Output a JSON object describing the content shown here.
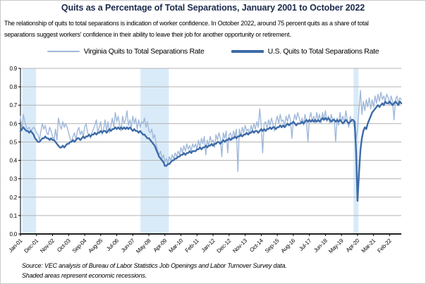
{
  "figure": {
    "title": "Quits as a Percentage of Total Separations, January 2001 to October 2022",
    "subtitle_line1": "The relationship of quits to total separations is indication of worker confidence. In October 2022, around 75 percent quits as a share of total",
    "subtitle_line2": "separations suggest workers' confidence in their ability to leave their job for another opportunity or retirement.",
    "source_line1": "Source: VEC analysis of Bureau of Labor Statistics Job Openings and Labor Turnover Survey data.",
    "source_line2": "Shaded areas represent economic recessions."
  },
  "colors": {
    "title": "#1b2a4c",
    "virginia_line": "#9fb8da",
    "us_line": "#3d6ba8",
    "recession_band": "#d9ebf8",
    "gridline": "#b3b3b3",
    "axis": "#000000"
  },
  "chart_data": {
    "type": "line",
    "title": "Quits as a Percentage of Total Separations, January 2001 to October 2022",
    "x_start": "Jan-2001",
    "x_end": "Oct-2022",
    "x_frequency": "monthly",
    "ylim": [
      0.0,
      0.9
    ],
    "y_tick_step": 0.1,
    "grid": true,
    "legend_position": "top",
    "x_tick_labels": [
      "Jan-01",
      "Dec-01",
      "Nov-02",
      "Oct-03",
      "Sep-04",
      "Aug-05",
      "Jul-06",
      "Jun-07",
      "May-08",
      "Apr-09",
      "Mar-10",
      "Feb-11",
      "Jan-12",
      "Dec-12",
      "Nov-13",
      "Oct-14",
      "Sep-15",
      "Aug-16",
      "Jul-17",
      "Jun-18",
      "May-19",
      "Apr-20",
      "Mar-21",
      "Feb-22"
    ],
    "x_tick_indices": [
      0,
      11,
      22,
      33,
      44,
      55,
      66,
      77,
      88,
      99,
      110,
      121,
      132,
      143,
      154,
      165,
      176,
      187,
      198,
      209,
      220,
      231,
      242,
      253
    ],
    "recession_bands": [
      {
        "start": "Mar-2001",
        "end": "Nov-2001",
        "from_index": 2,
        "to_index": 10
      },
      {
        "start": "Dec-2007",
        "end": "Jun-2009",
        "from_index": 83,
        "to_index": 101
      },
      {
        "start": "Feb-2020",
        "end": "Apr-2020",
        "from_index": 229,
        "to_index": 231
      }
    ],
    "series": [
      {
        "name": "Virginia Quits to Total Separations Rate",
        "color": "#9fb8da",
        "width": 1.4,
        "values": [
          0.64,
          0.56,
          0.65,
          0.61,
          0.58,
          0.57,
          0.58,
          0.56,
          0.57,
          0.58,
          0.57,
          0.55,
          0.54,
          0.51,
          0.56,
          0.6,
          0.57,
          0.59,
          0.55,
          0.54,
          0.58,
          0.56,
          0.53,
          0.51,
          0.57,
          0.51,
          0.63,
          0.59,
          0.57,
          0.61,
          0.58,
          0.6,
          0.58,
          0.55,
          0.52,
          0.5,
          0.53,
          0.55,
          0.51,
          0.56,
          0.58,
          0.54,
          0.56,
          0.53,
          0.58,
          0.6,
          0.55,
          0.54,
          0.52,
          0.55,
          0.57,
          0.59,
          0.62,
          0.55,
          0.58,
          0.61,
          0.54,
          0.57,
          0.62,
          0.56,
          0.61,
          0.55,
          0.59,
          0.63,
          0.58,
          0.66,
          0.61,
          0.64,
          0.59,
          0.56,
          0.64,
          0.6,
          0.62,
          0.67,
          0.59,
          0.62,
          0.58,
          0.64,
          0.6,
          0.63,
          0.57,
          0.62,
          0.58,
          0.61,
          0.6,
          0.63,
          0.58,
          0.61,
          0.56,
          0.55,
          0.57,
          0.52,
          0.54,
          0.49,
          0.45,
          0.43,
          0.45,
          0.41,
          0.43,
          0.39,
          0.41,
          0.38,
          0.42,
          0.4,
          0.43,
          0.41,
          0.44,
          0.42,
          0.45,
          0.43,
          0.47,
          0.44,
          0.48,
          0.45,
          0.49,
          0.46,
          0.48,
          0.45,
          0.49,
          0.47,
          0.49,
          0.46,
          0.51,
          0.47,
          0.52,
          0.49,
          0.53,
          0.43,
          0.51,
          0.48,
          0.53,
          0.5,
          0.51,
          0.47,
          0.54,
          0.51,
          0.55,
          0.52,
          0.42,
          0.55,
          0.52,
          0.56,
          0.44,
          0.54,
          0.55,
          0.51,
          0.56,
          0.53,
          0.57,
          0.34,
          0.57,
          0.53,
          0.58,
          0.55,
          0.59,
          0.56,
          0.57,
          0.54,
          0.59,
          0.56,
          0.6,
          0.57,
          0.61,
          0.58,
          0.68,
          0.59,
          0.44,
          0.6,
          0.61,
          0.57,
          0.62,
          0.59,
          0.63,
          0.6,
          0.56,
          0.61,
          0.64,
          0.6,
          0.65,
          0.61,
          0.62,
          0.59,
          0.64,
          0.61,
          0.65,
          0.62,
          0.52,
          0.61,
          0.65,
          0.62,
          0.66,
          0.63,
          0.6,
          0.63,
          0.59,
          0.65,
          0.61,
          0.5,
          0.63,
          0.66,
          0.61,
          0.64,
          0.6,
          0.66,
          0.62,
          0.65,
          0.6,
          0.66,
          0.62,
          0.67,
          0.61,
          0.64,
          0.6,
          0.65,
          0.61,
          0.63,
          0.5,
          0.63,
          0.59,
          0.66,
          0.61,
          0.64,
          0.6,
          0.67,
          0.62,
          0.58,
          0.64,
          0.61,
          0.61,
          0.57,
          0.52,
          0.56,
          0.68,
          0.78,
          0.65,
          0.72,
          0.67,
          0.73,
          0.69,
          0.74,
          0.68,
          0.73,
          0.69,
          0.75,
          0.71,
          0.76,
          0.72,
          0.77,
          0.73,
          0.75,
          0.72,
          0.76,
          0.74,
          0.7,
          0.75,
          0.72,
          0.62,
          0.73,
          0.75,
          0.71,
          0.74,
          0.73
        ]
      },
      {
        "name": "U.S. Quits to Total Separations Rate",
        "color": "#3d6ba8",
        "width": 2.4,
        "values": [
          0.56,
          0.57,
          0.58,
          0.57,
          0.56,
          0.56,
          0.55,
          0.56,
          0.55,
          0.54,
          0.52,
          0.51,
          0.5,
          0.5,
          0.51,
          0.52,
          0.52,
          0.53,
          0.52,
          0.52,
          0.51,
          0.52,
          0.51,
          0.51,
          0.5,
          0.49,
          0.48,
          0.47,
          0.47,
          0.48,
          0.47,
          0.48,
          0.49,
          0.49,
          0.5,
          0.5,
          0.51,
          0.5,
          0.51,
          0.52,
          0.52,
          0.51,
          0.52,
          0.53,
          0.52,
          0.53,
          0.53,
          0.54,
          0.53,
          0.54,
          0.54,
          0.55,
          0.54,
          0.55,
          0.55,
          0.56,
          0.55,
          0.56,
          0.56,
          0.55,
          0.56,
          0.57,
          0.56,
          0.57,
          0.57,
          0.58,
          0.57,
          0.58,
          0.57,
          0.58,
          0.57,
          0.58,
          0.57,
          0.58,
          0.57,
          0.58,
          0.57,
          0.56,
          0.57,
          0.56,
          0.56,
          0.55,
          0.56,
          0.55,
          0.54,
          0.54,
          0.53,
          0.52,
          0.52,
          0.51,
          0.5,
          0.49,
          0.48,
          0.46,
          0.44,
          0.42,
          0.41,
          0.4,
          0.39,
          0.37,
          0.37,
          0.38,
          0.38,
          0.39,
          0.4,
          0.4,
          0.41,
          0.41,
          0.42,
          0.42,
          0.43,
          0.43,
          0.44,
          0.43,
          0.44,
          0.44,
          0.45,
          0.44,
          0.45,
          0.45,
          0.45,
          0.46,
          0.46,
          0.47,
          0.46,
          0.47,
          0.47,
          0.48,
          0.47,
          0.48,
          0.48,
          0.49,
          0.48,
          0.49,
          0.49,
          0.5,
          0.5,
          0.49,
          0.5,
          0.51,
          0.5,
          0.51,
          0.51,
          0.52,
          0.51,
          0.52,
          0.52,
          0.53,
          0.52,
          0.53,
          0.53,
          0.54,
          0.53,
          0.54,
          0.54,
          0.55,
          0.54,
          0.55,
          0.55,
          0.56,
          0.55,
          0.56,
          0.56,
          0.55,
          0.56,
          0.57,
          0.56,
          0.57,
          0.56,
          0.57,
          0.57,
          0.58,
          0.57,
          0.58,
          0.58,
          0.57,
          0.58,
          0.58,
          0.59,
          0.58,
          0.59,
          0.58,
          0.59,
          0.6,
          0.59,
          0.6,
          0.6,
          0.61,
          0.6,
          0.59,
          0.6,
          0.6,
          0.6,
          0.61,
          0.6,
          0.61,
          0.62,
          0.61,
          0.62,
          0.61,
          0.62,
          0.61,
          0.62,
          0.61,
          0.62,
          0.61,
          0.62,
          0.63,
          0.62,
          0.63,
          0.62,
          0.63,
          0.62,
          0.61,
          0.62,
          0.62,
          0.61,
          0.62,
          0.61,
          0.62,
          0.61,
          0.6,
          0.61,
          0.62,
          0.61,
          0.6,
          0.61,
          0.62,
          0.62,
          0.61,
          0.45,
          0.18,
          0.33,
          0.46,
          0.52,
          0.56,
          0.58,
          0.57,
          0.6,
          0.62,
          0.64,
          0.66,
          0.67,
          0.68,
          0.69,
          0.7,
          0.69,
          0.7,
          0.71,
          0.7,
          0.72,
          0.71,
          0.71,
          0.72,
          0.71,
          0.7,
          0.71,
          0.72,
          0.71,
          0.7,
          0.72,
          0.71
        ]
      }
    ]
  }
}
